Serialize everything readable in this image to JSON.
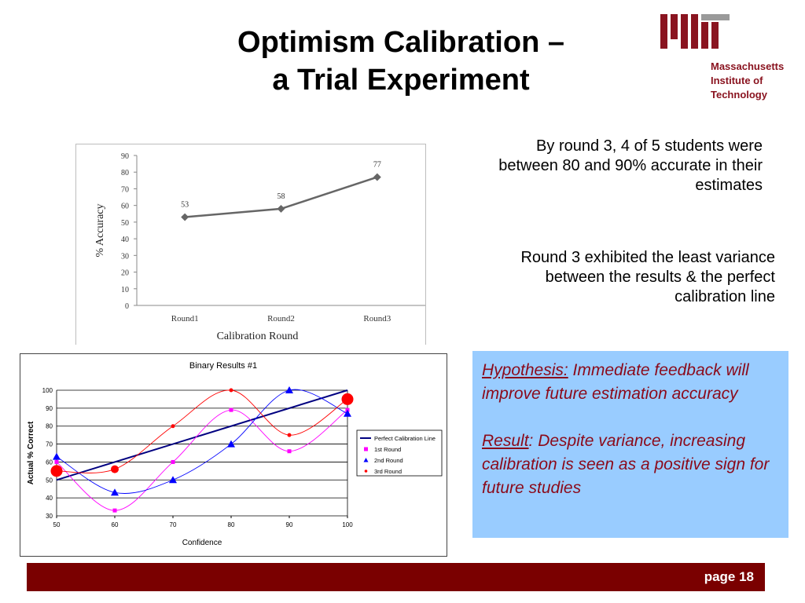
{
  "slide": {
    "title_line1": "Optimism Calibration –",
    "title_line2": "a Trial Experiment",
    "page_label": "page 18"
  },
  "logo": {
    "line1": "Massachusetts",
    "line2": "Institute of",
    "line3": "Technology",
    "color": "#8a1420"
  },
  "notes": {
    "note1": "By round 3, 4 of 5 students were between 80 and 90% accurate in their estimates",
    "note2": "Round 3 exhibited the least variance between the results & the perfect calibration line"
  },
  "hypothesis": {
    "hyp_label": "Hypothesis:",
    "hyp_text": " Immediate feedback will improve future estimation accuracy",
    "result_label": "Result",
    "result_text": ": Despite variance, increasing calibration is seen as a positive sign for future studies",
    "bg_color": "#99ccff",
    "text_color": "#8b0a1a"
  },
  "chart_data": [
    {
      "type": "line",
      "title": "",
      "xlabel": "Calibration Round",
      "ylabel": "% Accuracy",
      "categories": [
        "Round1",
        "Round2",
        "Round3"
      ],
      "values": [
        53,
        58,
        77
      ],
      "data_labels": [
        "53",
        "58",
        "77"
      ],
      "ylim": [
        0,
        90
      ],
      "yticks": [
        "0",
        "10",
        "20",
        "30",
        "40",
        "50",
        "60",
        "70",
        "80",
        "90"
      ],
      "grid": false,
      "color": "#666666"
    },
    {
      "type": "scatter",
      "title": "Binary Results #1",
      "xlabel": "Confidence",
      "ylabel": "Actual % Correct",
      "xlim": [
        50,
        100
      ],
      "ylim": [
        30,
        100
      ],
      "xticks": [
        "50",
        "60",
        "70",
        "80",
        "90",
        "100"
      ],
      "yticks": [
        "30",
        "40",
        "50",
        "60",
        "70",
        "80",
        "90",
        "100"
      ],
      "grid": true,
      "legend_position": "right",
      "series": [
        {
          "name": "Perfect Calibration Line",
          "color": "#000080",
          "marker": "none",
          "x": [
            50,
            100
          ],
          "y": [
            50,
            100
          ]
        },
        {
          "name": "1st Round",
          "color": "#ff00ff",
          "marker": "square",
          "x": [
            50,
            60,
            70,
            80,
            90,
            100
          ],
          "y": [
            60,
            33,
            60,
            89,
            66,
            89
          ]
        },
        {
          "name": "2nd Round",
          "color": "#0000ff",
          "marker": "triangle",
          "x": [
            50,
            60,
            70,
            80,
            90,
            100
          ],
          "y": [
            63,
            43,
            50,
            70,
            100,
            87
          ]
        },
        {
          "name": "3rd Round",
          "color": "#ff0000",
          "marker": "circle",
          "x": [
            50,
            60,
            70,
            80,
            90,
            100
          ],
          "y": [
            55,
            56,
            80,
            100,
            75,
            95
          ]
        }
      ]
    }
  ]
}
